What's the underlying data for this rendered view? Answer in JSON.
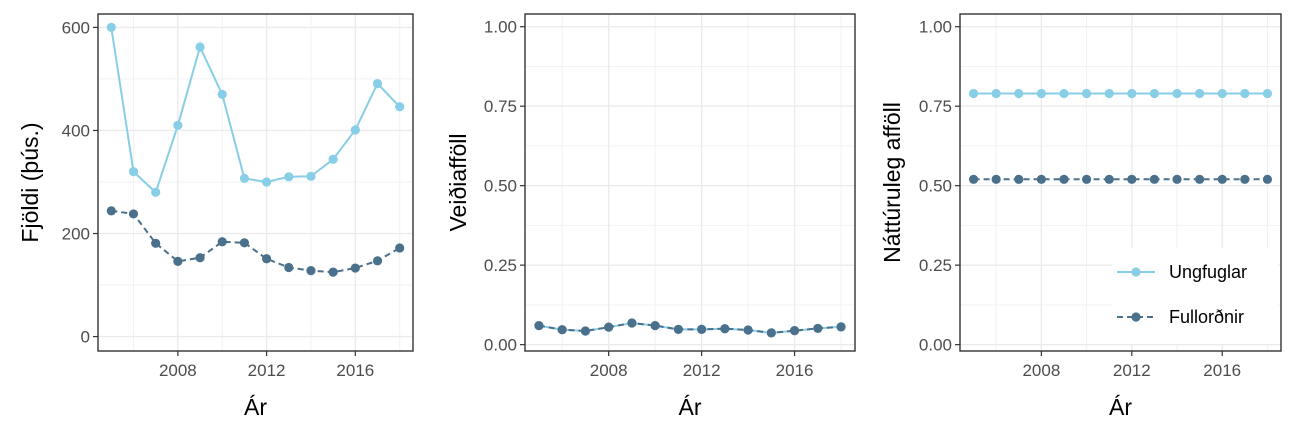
{
  "chart_data": [
    {
      "type": "line",
      "xlabel": "Ár",
      "ylabel": "Fjöldi (þús.)",
      "xlim": [
        2004.4,
        2018.6
      ],
      "ylim": [
        -28,
        626
      ],
      "x_ticks": [
        2008,
        2012,
        2016
      ],
      "y_ticks": [
        0,
        200,
        400,
        600
      ],
      "y_tick_labels": [
        "0",
        "200",
        "400",
        "600"
      ],
      "grid": true,
      "x": [
        2005,
        2006,
        2007,
        2008,
        2009,
        2010,
        2011,
        2012,
        2013,
        2014,
        2015,
        2016,
        2017,
        2018
      ],
      "series": [
        {
          "name": "Ungfuglar",
          "color": "#87cee6",
          "dash": "solid",
          "values": [
            600,
            320,
            280,
            410,
            562,
            470,
            307,
            300,
            310,
            311,
            344,
            401,
            491,
            446
          ]
        },
        {
          "name": "Fullorðnir",
          "color": "#4a708b",
          "dash": "dashed",
          "values": [
            244,
            238,
            181,
            146,
            153,
            184,
            182,
            151,
            134,
            128,
            125,
            133,
            147,
            172
          ]
        }
      ]
    },
    {
      "type": "line",
      "xlabel": "Ár",
      "ylabel": "Veiðiafföll",
      "xlim": [
        2004.4,
        2018.6
      ],
      "ylim": [
        -0.02,
        1.04
      ],
      "x_ticks": [
        2008,
        2012,
        2016
      ],
      "y_ticks": [
        0,
        0.25,
        0.5,
        0.75,
        1.0
      ],
      "y_tick_labels": [
        "0.00",
        "0.25",
        "0.50",
        "0.75",
        "1.00"
      ],
      "grid": true,
      "x": [
        2005,
        2006,
        2007,
        2008,
        2009,
        2010,
        2011,
        2012,
        2013,
        2014,
        2015,
        2016,
        2017,
        2018
      ],
      "series": [
        {
          "name": "Ungfuglar",
          "color": "#87cee6",
          "dash": "solid",
          "values": [
            0.06,
            0.047,
            0.043,
            0.055,
            0.068,
            0.06,
            0.048,
            0.048,
            0.05,
            0.046,
            0.037,
            0.044,
            0.051,
            0.056
          ]
        },
        {
          "name": "Fullorðnir",
          "color": "#4a708b",
          "dash": "dashed",
          "values": [
            0.06,
            0.047,
            0.043,
            0.055,
            0.068,
            0.06,
            0.048,
            0.048,
            0.05,
            0.046,
            0.037,
            0.044,
            0.051,
            0.056
          ]
        }
      ]
    },
    {
      "type": "line",
      "xlabel": "Ár",
      "ylabel": "Náttúruleg afföll",
      "xlim": [
        2004.4,
        2018.6
      ],
      "ylim": [
        -0.02,
        1.04
      ],
      "x_ticks": [
        2008,
        2012,
        2016
      ],
      "y_ticks": [
        0,
        0.25,
        0.5,
        0.75,
        1.0
      ],
      "y_tick_labels": [
        "0.00",
        "0.25",
        "0.50",
        "0.75",
        "1.00"
      ],
      "grid": true,
      "legend": {
        "position": "bottom-right",
        "entries": [
          "Ungfuglar",
          "Fullorðnir"
        ]
      },
      "x": [
        2005,
        2006,
        2007,
        2008,
        2009,
        2010,
        2011,
        2012,
        2013,
        2014,
        2015,
        2016,
        2017,
        2018
      ],
      "series": [
        {
          "name": "Ungfuglar",
          "color": "#87cee6",
          "dash": "solid",
          "values": [
            0.79,
            0.79,
            0.79,
            0.79,
            0.79,
            0.79,
            0.79,
            0.79,
            0.79,
            0.79,
            0.79,
            0.79,
            0.79,
            0.79
          ]
        },
        {
          "name": "Fullorðnir",
          "color": "#4a708b",
          "dash": "dashed",
          "values": [
            0.52,
            0.52,
            0.52,
            0.52,
            0.52,
            0.52,
            0.52,
            0.52,
            0.52,
            0.52,
            0.52,
            0.52,
            0.52,
            0.52
          ]
        }
      ]
    }
  ]
}
